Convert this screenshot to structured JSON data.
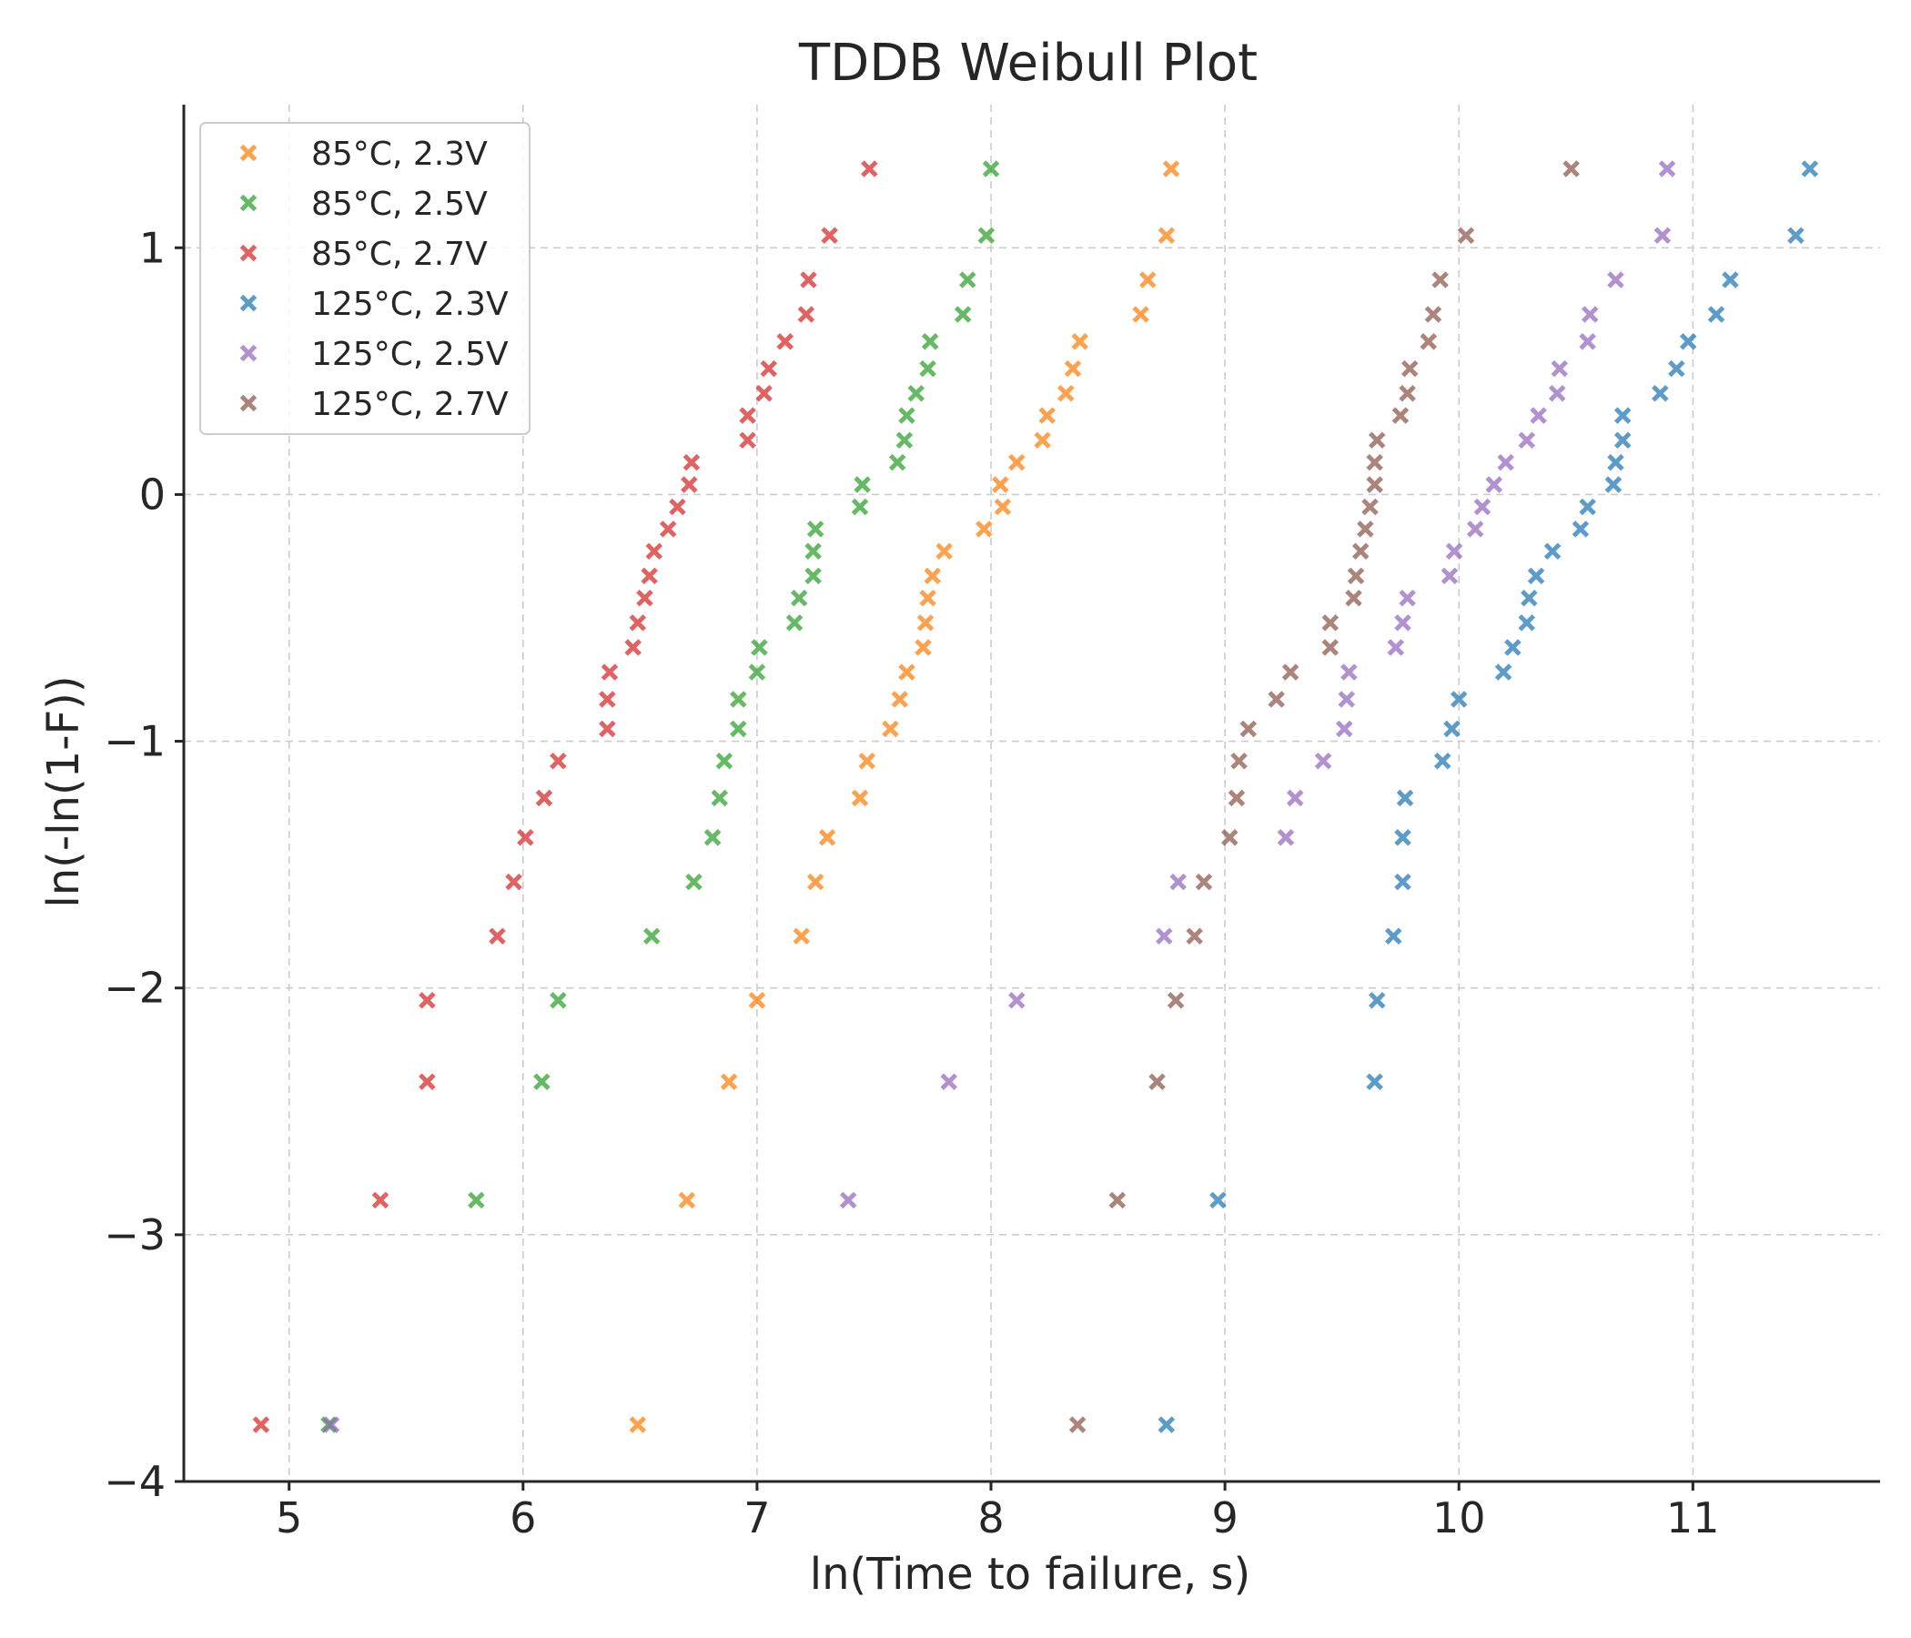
{
  "chart_data": {
    "type": "scatter",
    "title": "TDDB Weibull Plot",
    "xlabel": "ln(Time to failure, s)",
    "ylabel": "ln(-ln(1-F))",
    "xlim": [
      4.55,
      11.8
    ],
    "ylim": [
      -4.0,
      1.58
    ],
    "xticks": [
      "5",
      "6",
      "7",
      "8",
      "9",
      "10",
      "11"
    ],
    "yticks": [
      "−4",
      "−3",
      "−2",
      "−1",
      "0",
      "1"
    ],
    "grid": true,
    "legend_position": "top-left",
    "marker": "x",
    "y_levels": [
      -3.77,
      -2.86,
      -2.38,
      -2.05,
      -1.79,
      -1.57,
      -1.39,
      -1.23,
      -1.08,
      -0.95,
      -0.83,
      -0.72,
      -0.62,
      -0.52,
      -0.42,
      -0.33,
      -0.23,
      -0.14,
      -0.05,
      0.04,
      0.13,
      0.22,
      0.32,
      0.41,
      0.51,
      0.62,
      0.73,
      0.87,
      1.05,
      1.32
    ],
    "series": [
      {
        "name": "85°C, 2.3V",
        "color": "#ff7f0e",
        "x": [
          6.49,
          6.7,
          6.88,
          7.0,
          7.19,
          7.25,
          7.3,
          7.44,
          7.47,
          7.57,
          7.61,
          7.64,
          7.71,
          7.72,
          7.73,
          7.75,
          7.8,
          7.97,
          8.05,
          8.04,
          8.11,
          8.22,
          8.24,
          8.32,
          8.35,
          8.38,
          8.64,
          8.67,
          8.75,
          8.77
        ],
        "y": [
          -3.77,
          -2.86,
          -2.38,
          -2.05,
          -1.79,
          -1.57,
          -1.39,
          -1.23,
          -1.08,
          -0.95,
          -0.83,
          -0.72,
          -0.62,
          -0.52,
          -0.42,
          -0.33,
          -0.23,
          -0.14,
          -0.05,
          0.04,
          0.13,
          0.22,
          0.32,
          0.41,
          0.51,
          0.62,
          0.73,
          0.87,
          1.05,
          1.32
        ]
      },
      {
        "name": "85°C, 2.5V",
        "color": "#2ca02c",
        "x": [
          5.17,
          5.8,
          6.08,
          6.15,
          6.55,
          6.73,
          6.81,
          6.84,
          6.86,
          6.92,
          6.92,
          7.0,
          7.01,
          7.16,
          7.18,
          7.24,
          7.24,
          7.25,
          7.44,
          7.45,
          7.6,
          7.63,
          7.64,
          7.68,
          7.73,
          7.74,
          7.88,
          7.9,
          7.98,
          8.0
        ],
        "y": [
          -3.77,
          -2.86,
          -2.38,
          -2.05,
          -1.79,
          -1.57,
          -1.39,
          -1.23,
          -1.08,
          -0.95,
          -0.83,
          -0.72,
          -0.62,
          -0.52,
          -0.42,
          -0.33,
          -0.23,
          -0.14,
          -0.05,
          0.04,
          0.13,
          0.22,
          0.32,
          0.41,
          0.51,
          0.62,
          0.73,
          0.87,
          1.05,
          1.32
        ]
      },
      {
        "name": "85°C, 2.7V",
        "color": "#d62728",
        "x": [
          4.88,
          5.39,
          5.59,
          5.59,
          5.89,
          5.96,
          6.01,
          6.09,
          6.15,
          6.36,
          6.36,
          6.37,
          6.47,
          6.49,
          6.52,
          6.54,
          6.56,
          6.62,
          6.66,
          6.71,
          6.72,
          6.96,
          6.96,
          7.03,
          7.05,
          7.12,
          7.21,
          7.22,
          7.31,
          7.48
        ],
        "y": [
          -3.77,
          -2.86,
          -2.38,
          -2.05,
          -1.79,
          -1.57,
          -1.39,
          -1.23,
          -1.08,
          -0.95,
          -0.83,
          -0.72,
          -0.62,
          -0.52,
          -0.42,
          -0.33,
          -0.23,
          -0.14,
          -0.05,
          0.04,
          0.13,
          0.22,
          0.32,
          0.41,
          0.51,
          0.62,
          0.73,
          0.87,
          1.05,
          1.32
        ]
      },
      {
        "name": "125°C, 2.3V",
        "color": "#1f77b4",
        "x": [
          8.75,
          8.97,
          9.64,
          9.65,
          9.72,
          9.76,
          9.76,
          9.77,
          9.93,
          9.97,
          10.0,
          10.19,
          10.23,
          10.29,
          10.3,
          10.33,
          10.4,
          10.52,
          10.55,
          10.66,
          10.67,
          10.7,
          10.7,
          10.86,
          10.93,
          10.98,
          11.1,
          11.16,
          11.44,
          11.5
        ],
        "y": [
          -3.77,
          -2.86,
          -2.38,
          -2.05,
          -1.79,
          -1.57,
          -1.39,
          -1.23,
          -1.08,
          -0.95,
          -0.83,
          -0.72,
          -0.62,
          -0.52,
          -0.42,
          -0.33,
          -0.23,
          -0.14,
          -0.05,
          0.04,
          0.13,
          0.22,
          0.32,
          0.41,
          0.51,
          0.62,
          0.73,
          0.87,
          1.05,
          1.32
        ]
      },
      {
        "name": "125°C, 2.5V",
        "color": "#9467bd",
        "x": [
          5.18,
          7.39,
          7.82,
          8.11,
          8.74,
          8.8,
          9.26,
          9.3,
          9.42,
          9.51,
          9.52,
          9.53,
          9.73,
          9.76,
          9.78,
          9.96,
          9.98,
          10.07,
          10.1,
          10.15,
          10.2,
          10.29,
          10.34,
          10.42,
          10.43,
          10.55,
          10.56,
          10.67,
          10.87,
          10.89
        ],
        "y": [
          -3.77,
          -2.86,
          -2.38,
          -2.05,
          -1.79,
          -1.57,
          -1.39,
          -1.23,
          -1.08,
          -0.95,
          -0.83,
          -0.72,
          -0.62,
          -0.52,
          -0.42,
          -0.33,
          -0.23,
          -0.14,
          -0.05,
          0.04,
          0.13,
          0.22,
          0.32,
          0.41,
          0.51,
          0.62,
          0.73,
          0.87,
          1.05,
          1.32
        ]
      },
      {
        "name": "125°C, 2.7V",
        "color": "#8c564b",
        "x": [
          8.37,
          8.54,
          8.71,
          8.79,
          8.87,
          8.91,
          9.02,
          9.05,
          9.06,
          9.1,
          9.22,
          9.28,
          9.45,
          9.45,
          9.55,
          9.56,
          9.58,
          9.6,
          9.62,
          9.64,
          9.64,
          9.65,
          9.75,
          9.78,
          9.79,
          9.87,
          9.89,
          9.92,
          10.03,
          10.48
        ],
        "y": [
          -3.77,
          -2.86,
          -2.38,
          -2.05,
          -1.79,
          -1.57,
          -1.39,
          -1.23,
          -1.08,
          -0.95,
          -0.83,
          -0.72,
          -0.62,
          -0.52,
          -0.42,
          -0.33,
          -0.23,
          -0.14,
          -0.05,
          0.04,
          0.13,
          0.22,
          0.32,
          0.41,
          0.51,
          0.62,
          0.73,
          0.87,
          1.05,
          1.32
        ]
      }
    ]
  }
}
